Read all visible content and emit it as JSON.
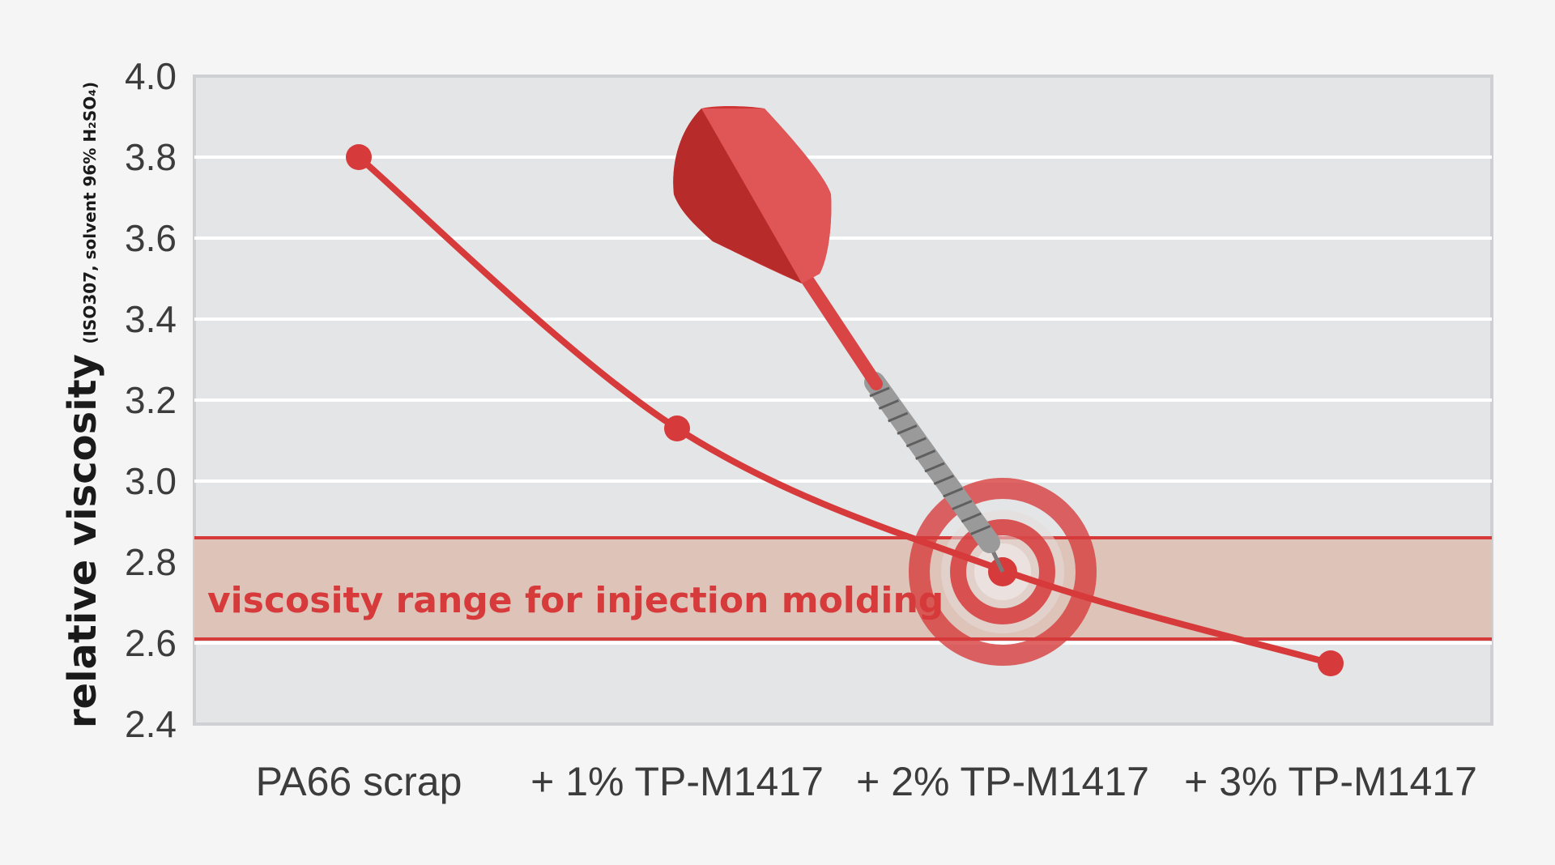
{
  "chart_data": {
    "type": "line",
    "categories": [
      "PA66 scrap",
      "+ 1% TP-M1417",
      "+ 2% TP-M1417",
      "+ 3% TP-M1417"
    ],
    "series": [
      {
        "values": [
          3.8,
          3.13,
          2.78,
          2.55
        ]
      }
    ],
    "ylabel": "relative viscosity",
    "ylabel_note": "(ISO307, solvent 96% H₂SO₄)",
    "ylim": [
      2.4,
      4.0
    ],
    "yticks": [
      2.4,
      2.6,
      2.8,
      3.0,
      3.2,
      3.4,
      3.6,
      3.8,
      4.0
    ],
    "ytick_labels": [
      "2.4",
      "2.6",
      "2.8",
      "3.0",
      "3.2",
      "3.4",
      "3.6",
      "3.8",
      "4.0"
    ],
    "band": {
      "low": 2.61,
      "high": 2.86,
      "label": "viscosity range for injection molding"
    },
    "grid": true,
    "colors": {
      "accent": "#d63a3a",
      "band_fill": "#dec3b9",
      "plot_bg": "#e4e5e7",
      "page_bg": "#f5f5f5"
    },
    "decoration": "dart hitting target at + 2% TP-M1417"
  }
}
